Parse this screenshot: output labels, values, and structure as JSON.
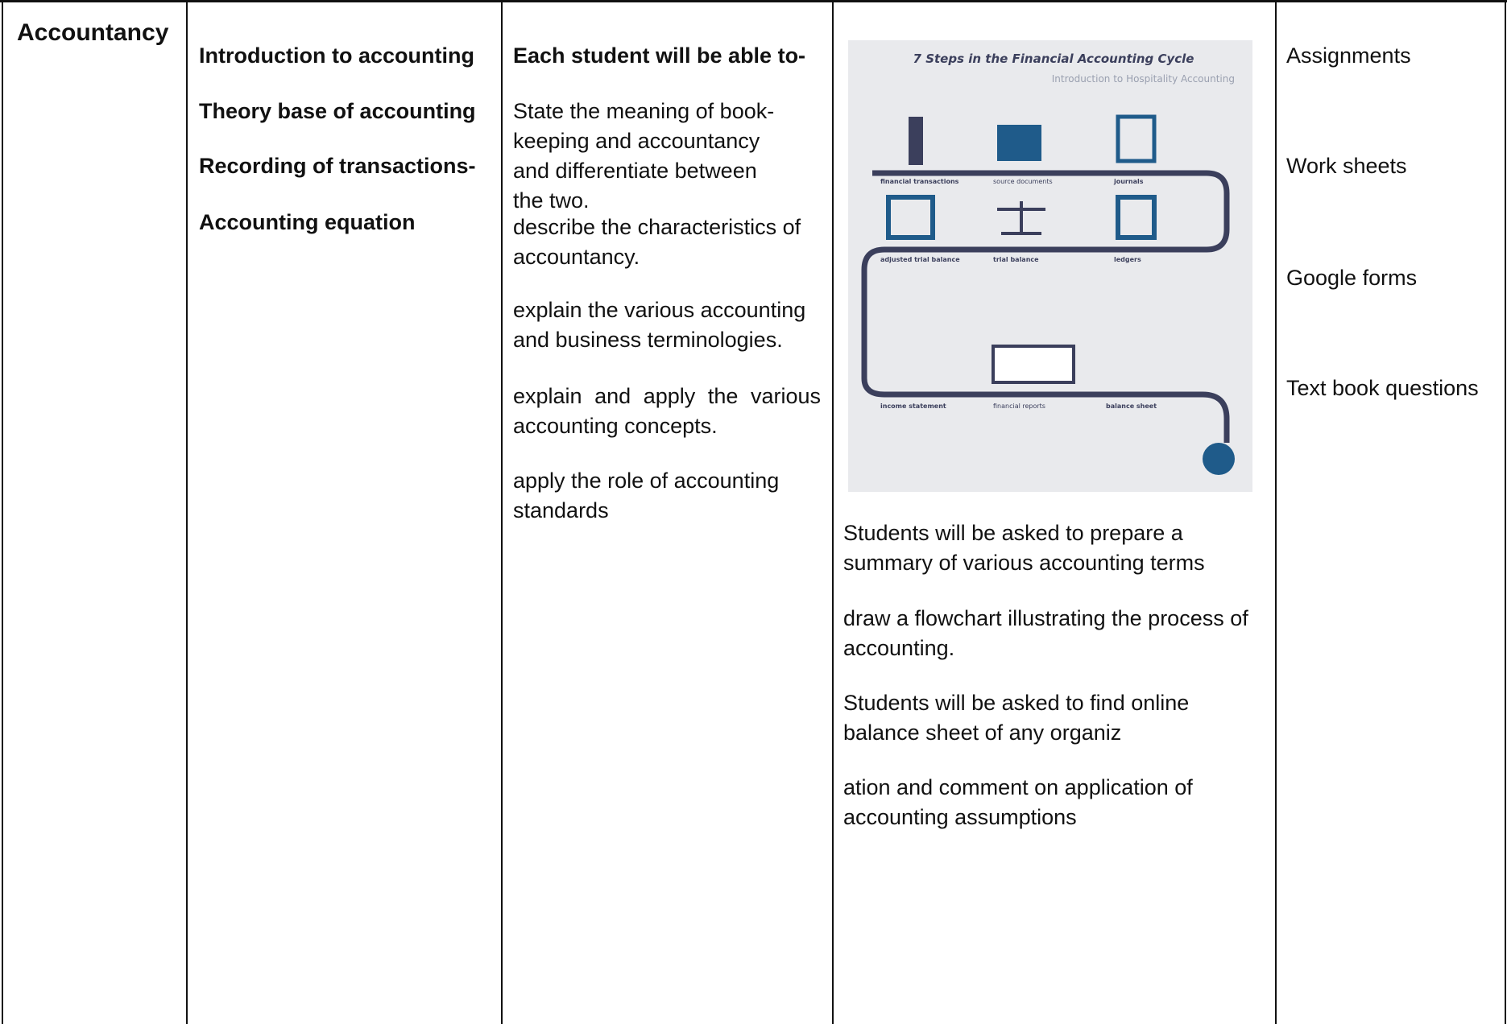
{
  "table": {
    "rows": [
      [
        {
          "title": "Accountancy"
        },
        {
          "items": [
            "Introduction to accounting",
            "Theory base of accounting",
            "Recording of transactions-",
            "Accounting equation"
          ]
        },
        {
          "heading": "Each student will be able to-",
          "items": [
            "State the meaning of book-keeping and accountancy and differentiate between the two.",
            "describe the characteristics of accountancy.",
            "explain the various accounting and business terminologies.",
            "explain and apply the various accounting concepts.",
            "apply the role of accounting standards"
          ]
        },
        {
          "infographic": {
            "title": "7 Steps in the Financial Accounting Cycle",
            "subtitle": "Introduction to Hospitality Accounting",
            "labels": [
              "financial transactions",
              "source documents",
              "journals",
              "adjusted trial balance",
              "trial balance",
              "ledgers",
              "income statement",
              "financial reports",
              "balance sheet"
            ]
          },
          "items": [
            "Students will be asked to prepare a summary of various accounting terms",
            "draw a flowchart illustrating the  process of accounting.",
            "Students will be asked to find online balance sheet of any organiz",
            "ation and comment on application of accounting assumptions"
          ]
        },
        {
          "items": [
            "Assignments",
            "Work sheets",
            "Google forms",
            "Text book questions"
          ]
        }
      ]
    ]
  }
}
